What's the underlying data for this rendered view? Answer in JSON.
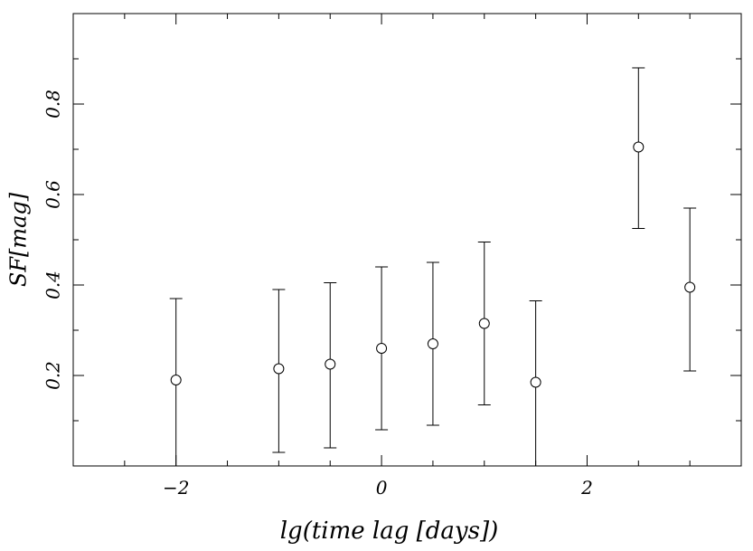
{
  "chart_data": {
    "type": "scatter",
    "title": "",
    "xlabel": "lg(time lag [days])",
    "ylabel": "SF[mag]",
    "xlim": [
      -3.0,
      3.5
    ],
    "ylim": [
      0.0,
      1.0
    ],
    "x_major_ticks": [
      -2,
      0,
      2
    ],
    "x_major_tick_labels": [
      "−2",
      "0",
      "2"
    ],
    "x_minor_ticks": [
      -2.5,
      -1.5,
      -1,
      -0.5,
      0.5,
      1,
      1.5,
      2.5,
      3
    ],
    "y_major_ticks": [
      0.2,
      0.4,
      0.6,
      0.8
    ],
    "y_major_tick_labels": [
      "0.2",
      "0.4",
      "0.6",
      "0.8"
    ],
    "y_minor_ticks": [
      0.1,
      0.3,
      0.5,
      0.7,
      0.9
    ],
    "grid": false,
    "legend": false,
    "marker": "open-circle",
    "series": [
      {
        "x": [
          -2.0,
          -1.0,
          -0.5,
          0.0,
          0.5,
          1.0,
          1.5,
          2.5,
          3.0
        ],
        "y": [
          0.19,
          0.215,
          0.225,
          0.26,
          0.27,
          0.315,
          0.185,
          0.705,
          0.395
        ],
        "yerr_low": [
          0.0,
          0.03,
          0.04,
          0.08,
          0.09,
          0.135,
          0.0,
          0.525,
          0.21
        ],
        "yerr_high": [
          0.37,
          0.39,
          0.405,
          0.44,
          0.45,
          0.495,
          0.365,
          0.88,
          0.57
        ],
        "color": "#000000"
      }
    ]
  }
}
